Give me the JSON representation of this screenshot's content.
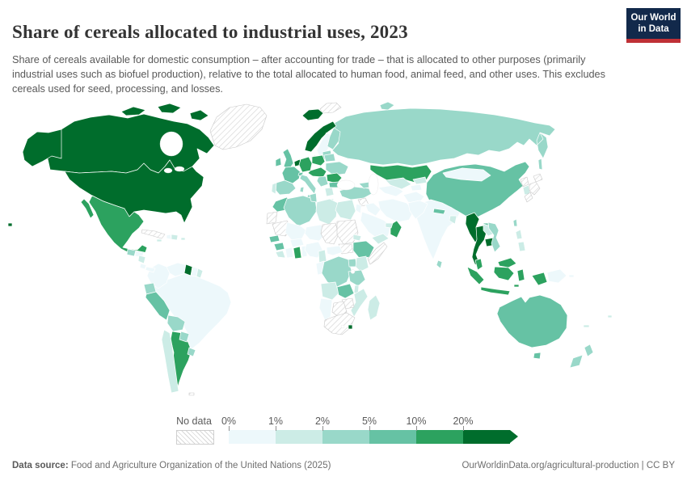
{
  "header": {
    "title": "Share of cereals allocated to industrial uses, 2023",
    "logo": {
      "line1": "Our World",
      "line2": "in Data",
      "bg": "#12294b",
      "stripe": "#bf3036"
    }
  },
  "subtitle": "Share of cereals available for domestic consumption – after accounting for trade – that is allocated to other purposes (primarily industrial uses such as biofuel production), relative to the total allocated to human food, animal feed, and other uses. This excludes cereals used for seed, processing, and losses.",
  "legend": {
    "no_data_label": "No data",
    "labels": [
      "0%",
      "1%",
      "2%",
      "5%",
      "10%",
      "20%"
    ],
    "colors": [
      "#edf8fb",
      "#ccece6",
      "#99d8c9",
      "#66c2a4",
      "#2ca25f",
      "#006d2c"
    ],
    "no_data_pattern": "gray-diagonal-hatch"
  },
  "footer": {
    "source_label": "Data source:",
    "source_text": " Food and Agriculture Organization of the United Nations (2025)",
    "right_text": "OurWorldinData.org/agricultural-production | CC BY"
  },
  "chart_data": {
    "type": "choropleth",
    "title": "Share of cereals allocated to industrial uses, 2023",
    "year": 2023,
    "unit": "%",
    "bins": [
      "0-1%",
      "1-2%",
      "2-5%",
      "5-10%",
      "10-20%",
      ">20%",
      "No data"
    ],
    "countries": [
      {
        "name": "Russia",
        "bin": 2,
        "value": "2-5%"
      },
      {
        "name": "Canada",
        "bin": 5,
        "value": ">20%"
      },
      {
        "name": "United States",
        "bin": 5,
        "value": ">20%"
      },
      {
        "name": "Greenland",
        "bin": "no-data",
        "value": "No data"
      },
      {
        "name": "Svalbard",
        "bin": "no-data",
        "value": "No data"
      },
      {
        "name": "Brazil",
        "bin": 0,
        "value": "0-1%"
      },
      {
        "name": "China",
        "bin": 3,
        "value": "5-10%"
      },
      {
        "name": "Australia",
        "bin": 3,
        "value": "5-10%"
      },
      {
        "name": "Kazakhstan",
        "bin": 4,
        "value": "10-20%"
      },
      {
        "name": "India",
        "bin": 0,
        "value": "0-1%"
      },
      {
        "name": "Mongolia",
        "bin": 0,
        "value": "0-1%"
      },
      {
        "name": "Iran",
        "bin": 0,
        "value": "0-1%"
      },
      {
        "name": "Saudi Arabia",
        "bin": 0,
        "value": "0-1%"
      },
      {
        "name": "Mexico",
        "bin": 4,
        "value": "10-20%"
      },
      {
        "name": "Argentina",
        "bin": 4,
        "value": "10-20%"
      },
      {
        "name": "Norway",
        "bin": 5,
        "value": ">20%"
      },
      {
        "name": "Iceland",
        "bin": 5,
        "value": ">20%"
      },
      {
        "name": "Sweden",
        "bin": 0,
        "value": "0-1%"
      },
      {
        "name": "Finland",
        "bin": 2,
        "value": "2-5%"
      },
      {
        "name": "Baltic states",
        "bin": 2,
        "value": "2-5%"
      },
      {
        "name": "Denmark",
        "bin": 2,
        "value": "2-5%"
      },
      {
        "name": "United Kingdom",
        "bin": 3,
        "value": "5-10%"
      },
      {
        "name": "Ireland",
        "bin": 3,
        "value": "5-10%"
      },
      {
        "name": "Netherlands and Belgium",
        "bin": 5,
        "value": ">20%"
      },
      {
        "name": "Germany",
        "bin": 4,
        "value": "10-20%"
      },
      {
        "name": "Poland",
        "bin": 4,
        "value": "10-20%"
      },
      {
        "name": "Belarus",
        "bin": 2,
        "value": "2-5%"
      },
      {
        "name": "Ukraine",
        "bin": 2,
        "value": "2-5%"
      },
      {
        "name": "Czechia, Slovakia, Austria and Hungary",
        "bin": 4,
        "value": "10-20%"
      },
      {
        "name": "France",
        "bin": 3,
        "value": "5-10%"
      },
      {
        "name": "Switzerland",
        "bin": 3,
        "value": "5-10%"
      },
      {
        "name": "Spain",
        "bin": 2,
        "value": "2-5%"
      },
      {
        "name": "Portugal",
        "bin": 1,
        "value": "1-2%"
      },
      {
        "name": "Italy",
        "bin": 2,
        "value": "2-5%"
      },
      {
        "name": "Serbia and Balkans",
        "bin": 2,
        "value": "2-5%"
      },
      {
        "name": "Romania",
        "bin": 4,
        "value": "10-20%"
      },
      {
        "name": "Bulgaria",
        "bin": 3,
        "value": "5-10%"
      },
      {
        "name": "Greece",
        "bin": 1,
        "value": "1-2%"
      },
      {
        "name": "Turkey",
        "bin": 2,
        "value": "2-5%"
      },
      {
        "name": "Georgia and Azerbaijan",
        "bin": 2,
        "value": "2-5%"
      },
      {
        "name": "Syria",
        "bin": "no-data",
        "value": "No data"
      },
      {
        "name": "Iraq",
        "bin": 0,
        "value": "0-1%"
      },
      {
        "name": "Israel and Jordan",
        "bin": 0,
        "value": "0-1%"
      },
      {
        "name": "Yemen",
        "bin": 1,
        "value": "1-2%"
      },
      {
        "name": "Oman",
        "bin": 4,
        "value": "10-20%"
      },
      {
        "name": "United Arab Emirates",
        "bin": 1,
        "value": "1-2%"
      },
      {
        "name": "Turkmenistan",
        "bin": 0,
        "value": "0-1%"
      },
      {
        "name": "Uzbekistan",
        "bin": 1,
        "value": "1-2%"
      },
      {
        "name": "Kyrgyzstan",
        "bin": 1,
        "value": "1-2%"
      },
      {
        "name": "Tajikistan",
        "bin": 0,
        "value": "0-1%"
      },
      {
        "name": "Afghanistan",
        "bin": 0,
        "value": "0-1%"
      },
      {
        "name": "Pakistan",
        "bin": 0,
        "value": "0-1%"
      },
      {
        "name": "Nepal",
        "bin": 3,
        "value": "5-10%"
      },
      {
        "name": "Bangladesh",
        "bin": 1,
        "value": "1-2%"
      },
      {
        "name": "Sri Lanka",
        "bin": 2,
        "value": "2-5%"
      },
      {
        "name": "Myanmar",
        "bin": 5,
        "value": ">20%"
      },
      {
        "name": "Thailand",
        "bin": 5,
        "value": ">20%"
      },
      {
        "name": "Laos",
        "bin": 1,
        "value": "1-2%"
      },
      {
        "name": "Cambodia",
        "bin": 5,
        "value": ">20%"
      },
      {
        "name": "Vietnam",
        "bin": 2,
        "value": "2-5%"
      },
      {
        "name": "Malaysia",
        "bin": 4,
        "value": "10-20%"
      },
      {
        "name": "Indonesia",
        "bin": 4,
        "value": "10-20%"
      },
      {
        "name": "Philippines",
        "bin": 1,
        "value": "1-2%"
      },
      {
        "name": "Taiwan",
        "bin": 2,
        "value": "2-5%"
      },
      {
        "name": "North Korea",
        "bin": "no-data",
        "value": "No data"
      },
      {
        "name": "South Korea",
        "bin": 1,
        "value": "1-2%"
      },
      {
        "name": "Japan",
        "bin": "no-data",
        "value": "No data"
      },
      {
        "name": "Papua New Guinea",
        "bin": 0,
        "value": "0-1%"
      },
      {
        "name": "New Zealand",
        "bin": 2,
        "value": "2-5%"
      },
      {
        "name": "Fiji",
        "bin": 1,
        "value": "1-2%"
      },
      {
        "name": "New Caledonia",
        "bin": 1,
        "value": "1-2%"
      },
      {
        "name": "Morocco",
        "bin": 3,
        "value": "5-10%"
      },
      {
        "name": "Western Sahara",
        "bin": "no-data",
        "value": "No data"
      },
      {
        "name": "Algeria",
        "bin": 2,
        "value": "2-5%"
      },
      {
        "name": "Tunisia",
        "bin": 2,
        "value": "2-5%"
      },
      {
        "name": "Libya",
        "bin": 1,
        "value": "1-2%"
      },
      {
        "name": "Egypt",
        "bin": 1,
        "value": "1-2%"
      },
      {
        "name": "Mauritania",
        "bin": "no-data",
        "value": "No data"
      },
      {
        "name": "Mali",
        "bin": 0,
        "value": "0-1%"
      },
      {
        "name": "Niger",
        "bin": 0,
        "value": "0-1%"
      },
      {
        "name": "Chad",
        "bin": "no-data",
        "value": "No data"
      },
      {
        "name": "Sudan",
        "bin": "no-data",
        "value": "No data"
      },
      {
        "name": "South Sudan",
        "bin": "no-data",
        "value": "No data"
      },
      {
        "name": "Eritrea",
        "bin": 1,
        "value": "1-2%"
      },
      {
        "name": "Ethiopia",
        "bin": 3,
        "value": "5-10%"
      },
      {
        "name": "Somalia",
        "bin": "no-data",
        "value": "No data"
      },
      {
        "name": "Senegal",
        "bin": 3,
        "value": "5-10%"
      },
      {
        "name": "Guinea",
        "bin": 3,
        "value": "5-10%"
      },
      {
        "name": "Sierra Leone and Liberia",
        "bin": 1,
        "value": "1-2%"
      },
      {
        "name": "Ivory Coast",
        "bin": 0,
        "value": "0-1%"
      },
      {
        "name": "Ghana",
        "bin": 4,
        "value": "10-20%"
      },
      {
        "name": "Togo and Benin",
        "bin": 0,
        "value": "0-1%"
      },
      {
        "name": "Burkina Faso",
        "bin": 0,
        "value": "0-1%"
      },
      {
        "name": "Nigeria",
        "bin": 0,
        "value": "0-1%"
      },
      {
        "name": "Cameroon",
        "bin": 1,
        "value": "1-2%"
      },
      {
        "name": "Central African Republic",
        "bin": 0,
        "value": "0-1%"
      },
      {
        "name": "Congo and Gabon",
        "bin": 0,
        "value": "0-1%"
      },
      {
        "name": "Democratic Republic of Congo",
        "bin": 2,
        "value": "2-5%"
      },
      {
        "name": "Uganda",
        "bin": 2,
        "value": "2-5%"
      },
      {
        "name": "Kenya",
        "bin": 1,
        "value": "1-2%"
      },
      {
        "name": "Tanzania",
        "bin": 2,
        "value": "2-5%"
      },
      {
        "name": "Angola",
        "bin": 1,
        "value": "1-2%"
      },
      {
        "name": "Zambia",
        "bin": 3,
        "value": "5-10%"
      },
      {
        "name": "Malawi",
        "bin": 1,
        "value": "1-2%"
      },
      {
        "name": "Mozambique",
        "bin": 1,
        "value": "1-2%"
      },
      {
        "name": "Zimbabwe",
        "bin": "no-data",
        "value": "No data"
      },
      {
        "name": "Botswana",
        "bin": "no-data",
        "value": "No data"
      },
      {
        "name": "Namibia",
        "bin": 0,
        "value": "0-1%"
      },
      {
        "name": "South Africa",
        "bin": "no-data",
        "value": "No data"
      },
      {
        "name": "Eswatini",
        "bin": 5,
        "value": ">20%"
      },
      {
        "name": "Madagascar",
        "bin": 1,
        "value": "1-2%"
      },
      {
        "name": "Colombia",
        "bin": 0,
        "value": "0-1%"
      },
      {
        "name": "Venezuela",
        "bin": 0,
        "value": "0-1%"
      },
      {
        "name": "Guyana",
        "bin": 5,
        "value": ">20%"
      },
      {
        "name": "Suriname",
        "bin": 0,
        "value": "0-1%"
      },
      {
        "name": "French Guiana",
        "bin": 1,
        "value": "1-2%"
      },
      {
        "name": "Ecuador",
        "bin": 2,
        "value": "2-5%"
      },
      {
        "name": "Peru",
        "bin": 3,
        "value": "5-10%"
      },
      {
        "name": "Bolivia",
        "bin": 2,
        "value": "2-5%"
      },
      {
        "name": "Paraguay",
        "bin": 2,
        "value": "2-5%"
      },
      {
        "name": "Uruguay",
        "bin": 2,
        "value": "2-5%"
      },
      {
        "name": "Chile",
        "bin": 1,
        "value": "1-2%"
      },
      {
        "name": "Guatemala",
        "bin": 2,
        "value": "2-5%"
      },
      {
        "name": "Honduras",
        "bin": 0,
        "value": "0-1%"
      },
      {
        "name": "Nicaragua",
        "bin": 1,
        "value": "1-2%"
      },
      {
        "name": "Costa Rica",
        "bin": 0,
        "value": "0-1%"
      },
      {
        "name": "Panama",
        "bin": 0,
        "value": "0-1%"
      },
      {
        "name": "Cuba",
        "bin": "no-data",
        "value": "No data"
      },
      {
        "name": "Haiti",
        "bin": 0,
        "value": "0-1%"
      },
      {
        "name": "Dominican Republic",
        "bin": 1,
        "value": "1-2%"
      },
      {
        "name": "Jamaica",
        "bin": 1,
        "value": "1-2%"
      },
      {
        "name": "Puerto Rico",
        "bin": 1,
        "value": "1-2%"
      },
      {
        "name": "Falkland Islands",
        "bin": "no-data",
        "value": "No data"
      }
    ]
  }
}
